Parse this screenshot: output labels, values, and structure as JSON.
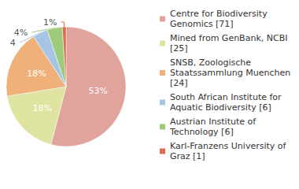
{
  "chart_data": {
    "type": "pie",
    "categories": [
      "Centre for Biodiversity Genomics [71]",
      "Mined from GenBank, NCBI [25]",
      "SNSB, Zoologische Staatssammlung Muenchen [24]",
      "South African Institute for Aquatic Biodiversity [6]",
      "Austrian Institute of Technology [6]",
      "Karl-Franzens University of Graz [1]"
    ],
    "values": [
      53,
      18,
      18,
      4,
      4,
      1
    ],
    "value_labels": [
      "53%",
      "18%",
      "18%",
      "4%",
      "4%",
      "1%"
    ],
    "colors": [
      "#e0a49c",
      "#dfe3a0",
      "#efb07a",
      "#a8c4e4",
      "#9ecb7a",
      "#e06a50"
    ],
    "data_labels": true,
    "legend": "right"
  }
}
